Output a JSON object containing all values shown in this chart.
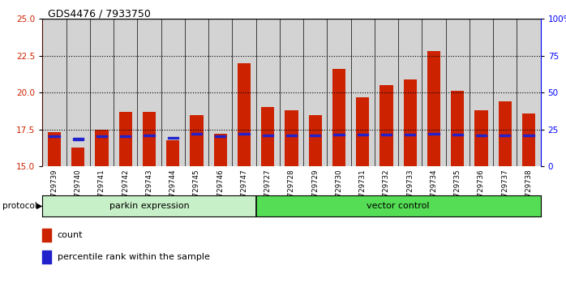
{
  "title": "GDS4476 / 7933750",
  "samples": [
    "GSM729739",
    "GSM729740",
    "GSM729741",
    "GSM729742",
    "GSM729743",
    "GSM729744",
    "GSM729745",
    "GSM729746",
    "GSM729747",
    "GSM729727",
    "GSM729728",
    "GSM729729",
    "GSM729730",
    "GSM729731",
    "GSM729732",
    "GSM729733",
    "GSM729734",
    "GSM729735",
    "GSM729736",
    "GSM729737",
    "GSM729738"
  ],
  "red_values": [
    17.3,
    16.3,
    17.5,
    18.7,
    18.7,
    16.8,
    18.5,
    17.2,
    22.0,
    19.0,
    18.8,
    18.5,
    21.6,
    19.7,
    20.5,
    20.9,
    22.8,
    20.1,
    18.8,
    19.4,
    18.6
  ],
  "blue_values": [
    17.05,
    16.85,
    17.05,
    17.05,
    17.1,
    16.95,
    17.2,
    17.05,
    17.2,
    17.1,
    17.1,
    17.1,
    17.15,
    17.15,
    17.15,
    17.15,
    17.2,
    17.15,
    17.1,
    17.1,
    17.1
  ],
  "group_labels": [
    "parkin expression",
    "vector control"
  ],
  "group_split": 9,
  "ylim": [
    15,
    25
  ],
  "y2lim": [
    0,
    100
  ],
  "yticks": [
    15,
    17.5,
    20,
    22.5,
    25
  ],
  "y2ticks": [
    0,
    25,
    50,
    75,
    100
  ],
  "bar_color": "#cc2200",
  "blue_color": "#2222cc",
  "col_bg_color": "#d3d3d3",
  "parkin_color": "#c8f0c8",
  "vector_color": "#55dd55",
  "legend_items": [
    "count",
    "percentile rank within the sample"
  ],
  "protocol_label": "protocol"
}
